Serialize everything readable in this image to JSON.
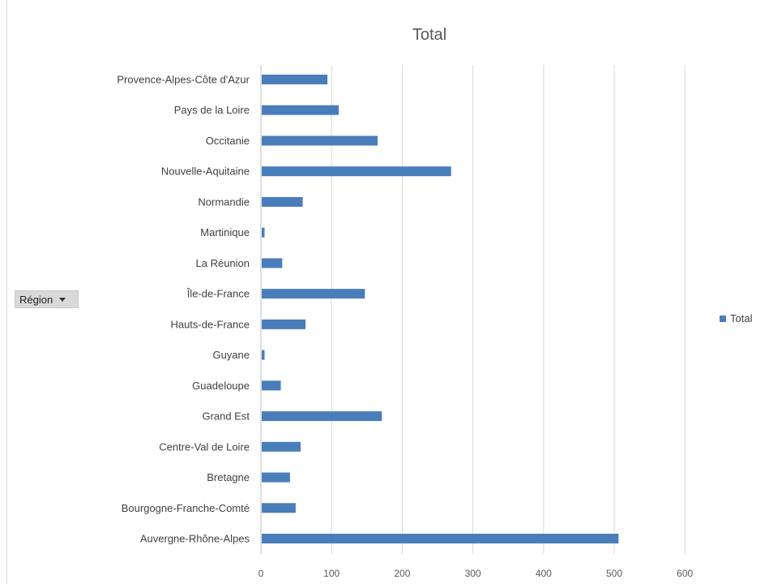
{
  "field_button": {
    "label": "Région"
  },
  "chart_data": {
    "type": "bar",
    "orientation": "horizontal",
    "title": "Total",
    "xlabel": "",
    "ylabel": "",
    "xlim": [
      0,
      600
    ],
    "x_ticks": [
      0,
      100,
      200,
      300,
      400,
      500,
      600
    ],
    "grid": true,
    "legend_position": "right",
    "categories": [
      "Provence-Alpes-Côte d'Azur",
      "Pays de la Loire",
      "Occitanie",
      "Nouvelle-Aquitaine",
      "Normandie",
      "Martinique",
      "La Réunion",
      "Île-de-France",
      "Hauts-de-France",
      "Guyane",
      "Guadeloupe",
      "Grand Est",
      "Centre-Val de Loire",
      "Bretagne",
      "Bourgogne-Franche-Comté",
      "Auvergne-Rhône-Alpes"
    ],
    "series": [
      {
        "name": "Total",
        "color": "#4a7ebb",
        "values": [
          93,
          109,
          164,
          268,
          58,
          4,
          29,
          146,
          62,
          4,
          27,
          170,
          55,
          40,
          48,
          505
        ]
      }
    ]
  }
}
